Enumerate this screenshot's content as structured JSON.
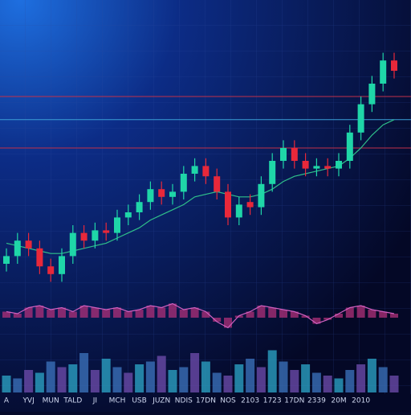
{
  "chart_data": {
    "type": "candlestick",
    "categories": [
      "A",
      null,
      "YVJ",
      null,
      "MUN",
      null,
      "TALD",
      null,
      "JI",
      null,
      "MCH",
      null,
      "USB",
      null,
      "JUZN",
      null,
      "NDIS",
      null,
      "17DN",
      null,
      "NOS",
      null,
      "2103",
      null,
      "1723",
      null,
      "17DN",
      null,
      "2339",
      null,
      "20M",
      null,
      "2010",
      null,
      null,
      null
    ],
    "open": [
      10,
      13,
      19,
      16,
      9,
      6,
      13,
      22,
      19,
      23,
      22,
      28,
      30,
      34,
      39,
      36,
      38,
      45,
      48,
      44,
      38,
      28,
      34,
      32,
      41,
      50,
      55,
      50,
      47,
      48,
      47,
      50,
      61,
      72,
      80,
      89
    ],
    "high": [
      16,
      22,
      22,
      19,
      12,
      16,
      25,
      25,
      26,
      26,
      31,
      33,
      37,
      42,
      42,
      41,
      48,
      51,
      51,
      47,
      41,
      36,
      37,
      44,
      53,
      58,
      58,
      53,
      51,
      51,
      53,
      64,
      75,
      83,
      92,
      92
    ],
    "low": [
      7,
      10,
      13,
      6,
      3,
      3,
      10,
      16,
      16,
      19,
      19,
      25,
      27,
      31,
      33,
      33,
      35,
      42,
      41,
      35,
      25,
      25,
      29,
      29,
      38,
      47,
      47,
      44,
      44,
      44,
      44,
      47,
      58,
      69,
      77,
      82
    ],
    "close": [
      13,
      19,
      16,
      9,
      6,
      13,
      22,
      19,
      23,
      22,
      28,
      30,
      34,
      39,
      36,
      38,
      45,
      48,
      44,
      38,
      28,
      33,
      32,
      41,
      50,
      55,
      50,
      47,
      48,
      47,
      50,
      61,
      72,
      80,
      89,
      85
    ],
    "up_color": "#1fd6a8",
    "down_color": "#e8283a",
    "ylim": [
      0,
      100
    ],
    "moving_average": {
      "color": "#2fbf8a",
      "values": [
        18,
        17,
        16,
        15,
        14,
        14,
        15,
        16,
        17,
        18,
        20,
        22,
        24,
        27,
        29,
        31,
        33,
        36,
        37,
        38,
        37,
        36,
        36,
        37,
        39,
        42,
        44,
        45,
        46,
        47,
        48,
        51,
        55,
        60,
        64,
        66
      ]
    },
    "reference_lines": [
      {
        "value": 75,
        "color": "#c0304a"
      },
      {
        "value": 66,
        "color": "#3a9fd8"
      },
      {
        "value": 55,
        "color": "#c0304a"
      }
    ],
    "oscillator": {
      "ylim": [
        -1,
        1
      ],
      "color": "#b0307a",
      "line_color": "#d060c0",
      "values": [
        0.3,
        0.2,
        0.5,
        0.6,
        0.4,
        0.5,
        0.3,
        0.6,
        0.5,
        0.4,
        0.5,
        0.3,
        0.4,
        0.6,
        0.5,
        0.7,
        0.4,
        0.5,
        0.3,
        -0.2,
        -0.5,
        0.1,
        0.3,
        0.6,
        0.5,
        0.4,
        0.3,
        0.1,
        -0.3,
        -0.1,
        0.2,
        0.5,
        0.6,
        0.4,
        0.3,
        0.2
      ]
    },
    "volume": {
      "ylim": [
        0,
        100
      ],
      "colors": [
        "#2a9fc0",
        "#3a6fb8",
        "#6a4aa8"
      ],
      "values": [
        30,
        25,
        40,
        35,
        55,
        45,
        50,
        70,
        40,
        60,
        45,
        35,
        50,
        55,
        65,
        40,
        45,
        70,
        55,
        35,
        30,
        50,
        60,
        45,
        75,
        55,
        40,
        50,
        35,
        30,
        25,
        40,
        50,
        60,
        45,
        30
      ]
    }
  }
}
